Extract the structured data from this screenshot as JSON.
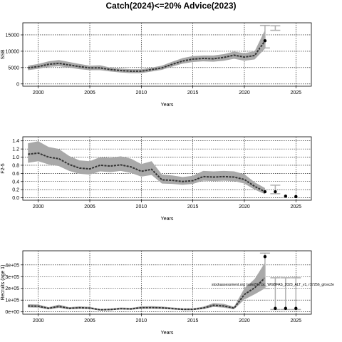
{
  "title": "Catch(2024)<=20% Advice(2023)",
  "chart_data": [
    {
      "type": "line",
      "ylabel": "SSB",
      "xlabel": "Years",
      "xlim": [
        1998.5,
        2026.5
      ],
      "ylim": [
        -700,
        18700
      ],
      "xticks": [
        2000,
        2005,
        2010,
        2015,
        2020,
        2025
      ],
      "yticks": [
        0,
        5000,
        10000,
        15000
      ],
      "ytick_labels": [
        "0",
        "5000",
        "10000",
        "15000"
      ],
      "grid": true,
      "series": [
        {
          "role": "median",
          "x": [
            1999,
            2000,
            2001,
            2002,
            2003,
            2004,
            2005,
            2006,
            2007,
            2008,
            2009,
            2010,
            2011,
            2012,
            2013,
            2014,
            2015,
            2016,
            2017,
            2018,
            2019,
            2020,
            2021,
            2022
          ],
          "y": [
            4900,
            5300,
            6000,
            6300,
            5800,
            5300,
            4900,
            4900,
            4400,
            4100,
            3900,
            3900,
            4400,
            4900,
            6000,
            7000,
            7600,
            7800,
            7700,
            8100,
            8800,
            8200,
            8700,
            13200
          ],
          "lower": [
            4200,
            4600,
            5200,
            5400,
            5000,
            4500,
            4200,
            4200,
            3800,
            3500,
            3300,
            3300,
            3800,
            4300,
            5300,
            6200,
            6700,
            6900,
            6800,
            7100,
            7700,
            7100,
            7500,
            10800
          ],
          "upper": [
            5600,
            6100,
            6900,
            7300,
            6700,
            6100,
            5600,
            5700,
            5000,
            4700,
            4500,
            4500,
            5000,
            5600,
            6800,
            7900,
            8500,
            8700,
            8700,
            9100,
            9900,
            9400,
            10000,
            16500
          ]
        }
      ],
      "projection_points": [
        {
          "x": 2022,
          "y": 13200
        }
      ],
      "projection_bars": [
        {
          "x": 2022,
          "low": 11000,
          "high": 17900
        },
        {
          "x": 2023,
          "low": 16400,
          "high": 17800
        }
      ]
    },
    {
      "type": "line",
      "ylabel": "F2-5",
      "xlabel": "Years",
      "xlim": [
        1998.5,
        2026.5
      ],
      "ylim": [
        -0.06,
        1.5
      ],
      "xticks": [
        2000,
        2005,
        2010,
        2015,
        2020,
        2025
      ],
      "yticks": [
        0.0,
        0.2,
        0.4,
        0.6,
        0.8,
        1.0,
        1.2,
        1.4
      ],
      "ytick_labels": [
        "0.0",
        "0.2",
        "0.4",
        "0.6",
        "0.8",
        "1.0",
        "1.2",
        "1.4"
      ],
      "grid": true,
      "series": [
        {
          "role": "median",
          "x": [
            1999,
            2000,
            2001,
            2002,
            2003,
            2004,
            2005,
            2006,
            2007,
            2008,
            2009,
            2010,
            2011,
            2012,
            2013,
            2014,
            2015,
            2016,
            2017,
            2018,
            2019,
            2020,
            2021,
            2022
          ],
          "y": [
            1.07,
            1.1,
            1.0,
            0.96,
            0.82,
            0.73,
            0.71,
            0.8,
            0.78,
            0.81,
            0.76,
            0.65,
            0.7,
            0.44,
            0.43,
            0.4,
            0.42,
            0.52,
            0.51,
            0.52,
            0.51,
            0.45,
            0.28,
            0.15
          ],
          "lower": [
            0.86,
            0.9,
            0.82,
            0.78,
            0.66,
            0.59,
            0.57,
            0.65,
            0.63,
            0.66,
            0.61,
            0.52,
            0.56,
            0.35,
            0.34,
            0.32,
            0.34,
            0.42,
            0.41,
            0.42,
            0.41,
            0.35,
            0.2,
            0.09
          ],
          "upper": [
            1.34,
            1.39,
            1.25,
            1.2,
            1.03,
            0.92,
            0.9,
            1.0,
            0.98,
            1.02,
            0.96,
            0.83,
            0.9,
            0.57,
            0.55,
            0.51,
            0.54,
            0.66,
            0.65,
            0.66,
            0.65,
            0.58,
            0.38,
            0.24
          ]
        }
      ],
      "projection_points": [
        {
          "x": 2022,
          "y": 0.15
        },
        {
          "x": 2023,
          "y": 0.15
        },
        {
          "x": 2024,
          "y": 0.04
        },
        {
          "x": 2025,
          "y": 0.03
        }
      ],
      "projection_bars": [
        {
          "x": 2023,
          "low": 0.1,
          "high": 0.31
        }
      ]
    },
    {
      "type": "line",
      "ylabel": "Recruits (age 1)",
      "xlabel": "Years",
      "xlim": [
        1998.5,
        2026.5
      ],
      "ylim": [
        -20000,
        520000
      ],
      "xticks": [
        2000,
        2005,
        2010,
        2015,
        2020,
        2025
      ],
      "yticks": [
        0,
        100000,
        200000,
        300000,
        400000
      ],
      "ytick_labels": [
        "0e+00",
        "1e+05",
        "2e+05",
        "3e+05",
        "4e+05"
      ],
      "grid": true,
      "annotation": "stockassessment.org (sole27.7.bc_WGBFAS_2023_ALT_v1, r17256_git:ec2e",
      "series": [
        {
          "role": "median",
          "x": [
            1999,
            2000,
            2001,
            2002,
            2003,
            2004,
            2005,
            2006,
            2007,
            2008,
            2009,
            2010,
            2011,
            2012,
            2013,
            2014,
            2015,
            2016,
            2017,
            2018,
            2019,
            2020,
            2021,
            2022
          ],
          "y": [
            50000,
            48000,
            30000,
            46000,
            30000,
            35000,
            32000,
            18000,
            20000,
            27000,
            25000,
            35000,
            36000,
            34000,
            28000,
            22000,
            22000,
            32000,
            56000,
            50000,
            32000,
            148000,
            205000,
            290000
          ],
          "lower": [
            38000,
            36000,
            22000,
            34000,
            22000,
            26000,
            24000,
            12000,
            14000,
            20000,
            18000,
            26000,
            27000,
            25000,
            20000,
            15000,
            15000,
            23000,
            42000,
            36000,
            22000,
            105000,
            150000,
            200000
          ],
          "upper": [
            65000,
            63000,
            40000,
            61000,
            40000,
            47000,
            43000,
            25000,
            28000,
            37000,
            34000,
            47000,
            48000,
            45000,
            38000,
            30000,
            30000,
            44000,
            74000,
            68000,
            44000,
            200000,
            280000,
            420000
          ]
        }
      ],
      "projection_points": [
        {
          "x": 2022,
          "y": 470000
        },
        {
          "x": 2023,
          "y": 30000
        },
        {
          "x": 2024,
          "y": 30000
        },
        {
          "x": 2025,
          "y": 30000
        }
      ],
      "projection_bars": [
        {
          "x": 2022,
          "low": 200000,
          "high": 500000
        },
        {
          "x": 2023,
          "low": 20000,
          "high": 290000
        },
        {
          "x": 2024,
          "low": 20000,
          "high": 290000
        },
        {
          "x": 2025,
          "low": 20000,
          "high": 290000
        }
      ]
    }
  ]
}
